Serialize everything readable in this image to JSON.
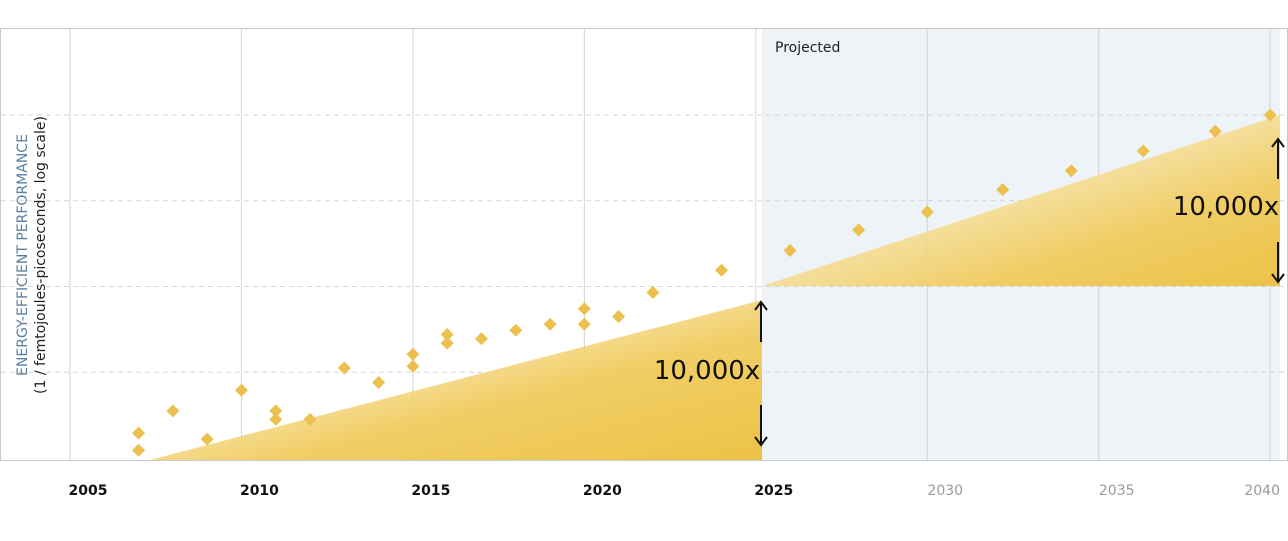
{
  "chart_data": {
    "type": "scatter",
    "ylabel": "ENERGY-EFFICIENT PERFORMANCE",
    "ylabel_sub": "(1 / femtojoules-picoseconds, log scale)",
    "x_ticks": [
      "2005",
      "2010",
      "2015",
      "2020",
      "2025",
      "2030",
      "2035",
      "2040"
    ],
    "x_range": [
      2005,
      2040
    ],
    "y_scale": "log",
    "y_range_decades": [
      0,
      5
    ],
    "grid": "vertical solid lines, horizontal dashed lines",
    "projected_region": {
      "label": "Projected",
      "from": 2025,
      "to": 2040
    },
    "annotations": [
      {
        "text": "10,000x",
        "from_year": 2025
      },
      {
        "text": "10,000x",
        "from_year": 2040
      }
    ],
    "marker_color": "#ebc04e",
    "series": [
      {
        "values": [
          {
            "x": 2007.0,
            "y": 0.09
          },
          {
            "x": 2007.0,
            "y": 0.29
          },
          {
            "x": 2008.0,
            "y": 0.55
          },
          {
            "x": 2009.0,
            "y": 0.22
          },
          {
            "x": 2010.0,
            "y": 0.79
          },
          {
            "x": 2011.0,
            "y": 0.45
          },
          {
            "x": 2011.0,
            "y": 0.55
          },
          {
            "x": 2012.0,
            "y": 0.45
          },
          {
            "x": 2013.0,
            "y": 1.05
          },
          {
            "x": 2014.0,
            "y": 0.88
          },
          {
            "x": 2015.0,
            "y": 1.07
          },
          {
            "x": 2015.0,
            "y": 1.21
          },
          {
            "x": 2016.0,
            "y": 1.34
          },
          {
            "x": 2016.0,
            "y": 1.44
          },
          {
            "x": 2017.0,
            "y": 1.39
          },
          {
            "x": 2018.0,
            "y": 1.49
          },
          {
            "x": 2019.0,
            "y": 1.56
          },
          {
            "x": 2020.0,
            "y": 1.56
          },
          {
            "x": 2020.0,
            "y": 1.74
          },
          {
            "x": 2021.0,
            "y": 1.65
          },
          {
            "x": 2022.0,
            "y": 1.93
          },
          {
            "x": 2024.0,
            "y": 2.19
          },
          {
            "x": 2026.0,
            "y": 2.42
          },
          {
            "x": 2028.0,
            "y": 2.66
          },
          {
            "x": 2030.0,
            "y": 2.87
          },
          {
            "x": 2032.2,
            "y": 3.13
          },
          {
            "x": 2034.2,
            "y": 3.35
          },
          {
            "x": 2036.3,
            "y": 3.58
          },
          {
            "x": 2038.4,
            "y": 3.81
          },
          {
            "x": 2040.0,
            "y": 4.0
          }
        ]
      }
    ]
  }
}
